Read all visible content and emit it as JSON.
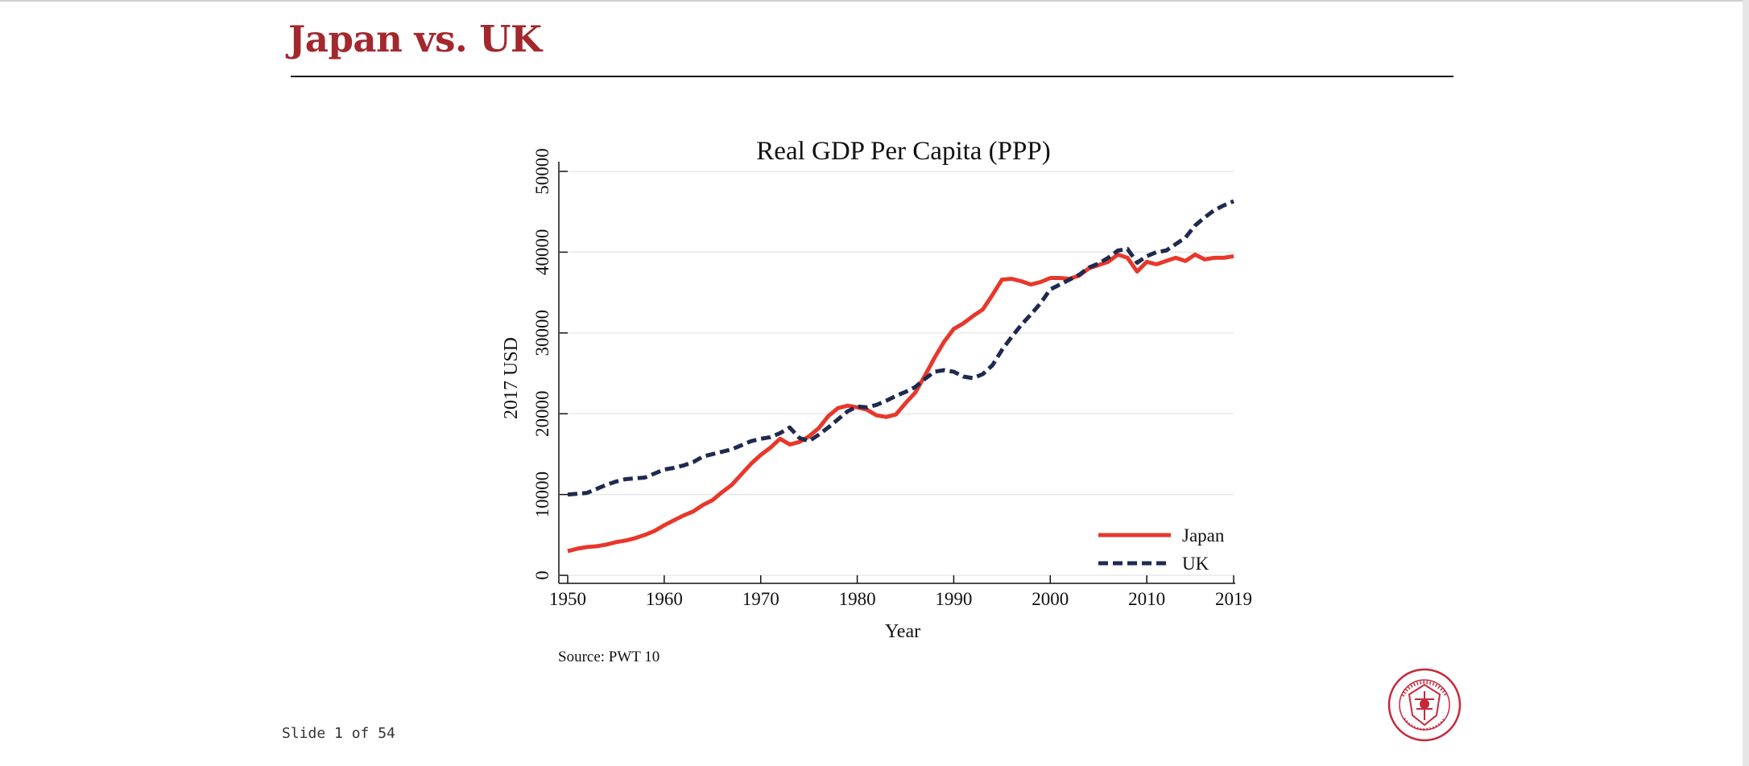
{
  "slide": {
    "title": "Japan vs. UK",
    "number_text": "Slide 1 of 54"
  },
  "logo": {
    "name": "Carnegie Mellon University seal",
    "text": "CARNEGIE MELLON UNIVERSITY · PITTSBURGH PENNSYLVANIA 1900",
    "color": "#c8283a"
  },
  "colors": {
    "title": "#a3282e",
    "japan": "#e8372b",
    "uk": "#1f2a4f"
  },
  "chart_data": {
    "type": "line",
    "title": "Real GDP Per Capita (PPP)",
    "xlabel": "Year",
    "ylabel": "2017 USD",
    "xlim": [
      1950,
      2019
    ],
    "ylim": [
      0,
      50000
    ],
    "x_ticks": [
      1950,
      1960,
      1970,
      1980,
      1990,
      2000,
      2010,
      2019
    ],
    "y_ticks": [
      0,
      10000,
      20000,
      30000,
      40000,
      50000
    ],
    "grid": true,
    "legend_position": "bottom-right",
    "source": "Source: PWT 10",
    "x": [
      1950,
      1951,
      1952,
      1953,
      1954,
      1955,
      1956,
      1957,
      1958,
      1959,
      1960,
      1961,
      1962,
      1963,
      1964,
      1965,
      1966,
      1967,
      1968,
      1969,
      1970,
      1971,
      1972,
      1973,
      1974,
      1975,
      1976,
      1977,
      1978,
      1979,
      1980,
      1981,
      1982,
      1983,
      1984,
      1985,
      1986,
      1987,
      1988,
      1989,
      1990,
      1991,
      1992,
      1993,
      1994,
      1995,
      1996,
      1997,
      1998,
      1999,
      2000,
      2001,
      2002,
      2003,
      2004,
      2005,
      2006,
      2007,
      2008,
      2009,
      2010,
      2011,
      2012,
      2013,
      2014,
      2015,
      2016,
      2017,
      2018,
      2019
    ],
    "series": [
      {
        "name": "Japan",
        "style": "solid",
        "color": "#e8372b",
        "values": [
          3000,
          3300,
          3500,
          3600,
          3800,
          4100,
          4300,
          4600,
          5000,
          5500,
          6200,
          6800,
          7400,
          7900,
          8700,
          9300,
          10300,
          11200,
          12500,
          13800,
          14900,
          15800,
          16900,
          16200,
          16500,
          17200,
          18200,
          19700,
          20700,
          21000,
          20800,
          20500,
          19800,
          19600,
          19900,
          21300,
          22600,
          24700,
          26900,
          28900,
          30500,
          31200,
          32100,
          32900,
          34700,
          36600,
          36700,
          36400,
          36000,
          36300,
          36800,
          36800,
          36700,
          37100,
          38000,
          38400,
          38800,
          39700,
          39300,
          37600,
          38800,
          38500,
          38900,
          39300,
          38900,
          39700,
          39100,
          39300,
          39300,
          39500
        ]
      },
      {
        "name": "UK",
        "style": "dashed",
        "color": "#1f2a4f",
        "values": [
          10000,
          10100,
          10200,
          10700,
          11200,
          11600,
          11900,
          12000,
          12100,
          12600,
          13100,
          13300,
          13600,
          14000,
          14700,
          15000,
          15300,
          15600,
          16100,
          16600,
          16900,
          17100,
          17600,
          18300,
          17000,
          16600,
          17400,
          18300,
          19300,
          20300,
          20900,
          20800,
          21100,
          21600,
          22200,
          22700,
          23300,
          24300,
          25200,
          25400,
          25200,
          24600,
          24400,
          24900,
          26000,
          27900,
          29500,
          31000,
          32300,
          33700,
          35400,
          36000,
          36600,
          37200,
          38100,
          38600,
          39300,
          40200,
          40400,
          38700,
          39500,
          40000,
          40200,
          41000,
          41800,
          43300,
          44300,
          45200,
          45800,
          46300
        ]
      }
    ]
  }
}
